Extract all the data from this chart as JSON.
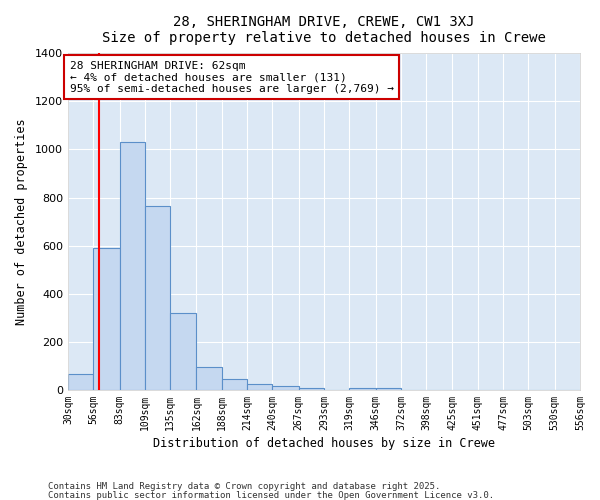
{
  "title": "28, SHERINGHAM DRIVE, CREWE, CW1 3XJ",
  "subtitle": "Size of property relative to detached houses in Crewe",
  "xlabel": "Distribution of detached houses by size in Crewe",
  "ylabel": "Number of detached properties",
  "bin_labels": [
    "30sqm",
    "56sqm",
    "83sqm",
    "109sqm",
    "135sqm",
    "162sqm",
    "188sqm",
    "214sqm",
    "240sqm",
    "267sqm",
    "293sqm",
    "319sqm",
    "346sqm",
    "372sqm",
    "398sqm",
    "425sqm",
    "451sqm",
    "477sqm",
    "503sqm",
    "530sqm",
    "556sqm"
  ],
  "bin_edges": [
    30,
    56,
    83,
    109,
    135,
    162,
    188,
    214,
    240,
    267,
    293,
    319,
    346,
    372,
    398,
    425,
    451,
    477,
    503,
    530,
    556
  ],
  "bar_heights": [
    65,
    590,
    1030,
    765,
    320,
    95,
    45,
    23,
    15,
    8,
    0,
    8,
    10,
    0,
    0,
    0,
    0,
    0,
    0,
    0
  ],
  "bar_color": "#c5d8f0",
  "bar_edge_color": "#5b8fc9",
  "plot_bg_color": "#dce8f5",
  "fig_bg_color": "#ffffff",
  "grid_color": "#ffffff",
  "red_line_x": 62,
  "ylim": [
    0,
    1400
  ],
  "yticks": [
    0,
    200,
    400,
    600,
    800,
    1000,
    1200,
    1400
  ],
  "annotation_line1": "28 SHERINGHAM DRIVE: 62sqm",
  "annotation_line2": "← 4% of detached houses are smaller (131)",
  "annotation_line3": "95% of semi-detached houses are larger (2,769) →",
  "annotation_box_color": "#ffffff",
  "annotation_box_edge_color": "#cc0000",
  "footnote1": "Contains HM Land Registry data © Crown copyright and database right 2025.",
  "footnote2": "Contains public sector information licensed under the Open Government Licence v3.0."
}
